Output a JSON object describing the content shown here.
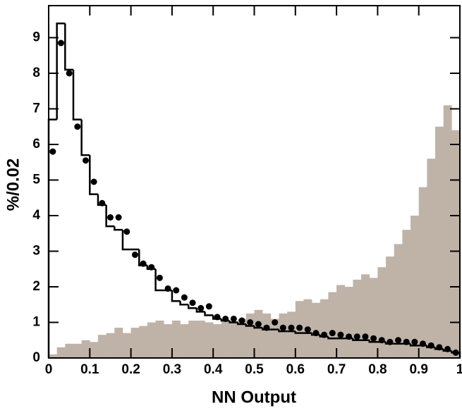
{
  "chart_data": {
    "type": "histogram",
    "x_label": "NN Output",
    "y_label": "%/0.02",
    "bins": [
      0,
      0.02,
      0.04,
      0.06,
      0.08,
      0.1,
      0.12,
      0.14,
      0.16,
      0.18,
      0.2,
      0.22,
      0.24,
      0.26,
      0.28,
      0.3,
      0.32,
      0.34,
      0.36,
      0.38,
      0.4,
      0.42,
      0.44,
      0.46,
      0.48,
      0.5,
      0.52,
      0.54,
      0.56,
      0.58,
      0.6,
      0.62,
      0.64,
      0.66,
      0.68,
      0.7,
      0.72,
      0.74,
      0.76,
      0.78,
      0.8,
      0.82,
      0.84,
      0.86,
      0.88,
      0.9,
      0.92,
      0.94,
      0.96,
      0.98,
      1
    ],
    "series": [
      {
        "style": "filled",
        "color": "#bfb3a8",
        "values": [
          0.1,
          0.3,
          0.4,
          0.4,
          0.5,
          0.45,
          0.65,
          0.7,
          0.85,
          0.7,
          0.85,
          0.9,
          1.0,
          1.05,
          0.95,
          1.05,
          0.95,
          1.05,
          1.05,
          1.0,
          0.95,
          1.05,
          1.0,
          1.1,
          1.25,
          1.35,
          1.25,
          1.1,
          1.25,
          1.3,
          1.6,
          1.65,
          1.55,
          1.65,
          1.85,
          2.05,
          2.0,
          2.2,
          2.35,
          2.25,
          2.55,
          2.85,
          3.2,
          3.6,
          4.0,
          4.8,
          5.6,
          6.5,
          7.1,
          6.4
        ]
      },
      {
        "style": "step",
        "color": "#000000",
        "values": [
          6.7,
          9.4,
          8.1,
          6.7,
          5.7,
          4.6,
          4.3,
          3.7,
          3.6,
          3.05,
          3.05,
          2.6,
          2.5,
          1.9,
          1.9,
          1.6,
          1.5,
          1.4,
          1.3,
          1.2,
          1.1,
          1.05,
          1.0,
          0.95,
          0.9,
          0.85,
          0.8,
          0.8,
          0.75,
          0.75,
          0.7,
          0.7,
          0.65,
          0.6,
          0.55,
          0.55,
          0.55,
          0.5,
          0.5,
          0.45,
          0.45,
          0.4,
          0.4,
          0.4,
          0.35,
          0.35,
          0.3,
          0.25,
          0.2,
          0.15
        ]
      },
      {
        "style": "points",
        "color": "#000000",
        "values": [
          5.8,
          8.85,
          8.0,
          6.5,
          5.55,
          4.95,
          4.35,
          3.95,
          3.95,
          3.55,
          2.9,
          2.65,
          2.55,
          2.25,
          1.95,
          1.9,
          1.7,
          1.55,
          1.4,
          1.45,
          1.15,
          1.1,
          1.1,
          1.05,
          1.0,
          0.95,
          0.85,
          1.0,
          0.85,
          0.85,
          0.85,
          0.8,
          0.7,
          0.65,
          0.7,
          0.65,
          0.6,
          0.6,
          0.6,
          0.55,
          0.5,
          0.45,
          0.5,
          0.45,
          0.45,
          0.4,
          0.35,
          0.3,
          0.25,
          0.15
        ]
      }
    ],
    "xlim": [
      0,
      1
    ],
    "ylim": [
      0,
      9.9
    ],
    "xticks": [
      0,
      0.1,
      0.2,
      0.3,
      0.4,
      0.5,
      0.6,
      0.7,
      0.8,
      0.9,
      1
    ],
    "yticks": [
      0,
      1,
      2,
      3,
      4,
      5,
      6,
      7,
      8,
      9
    ]
  }
}
